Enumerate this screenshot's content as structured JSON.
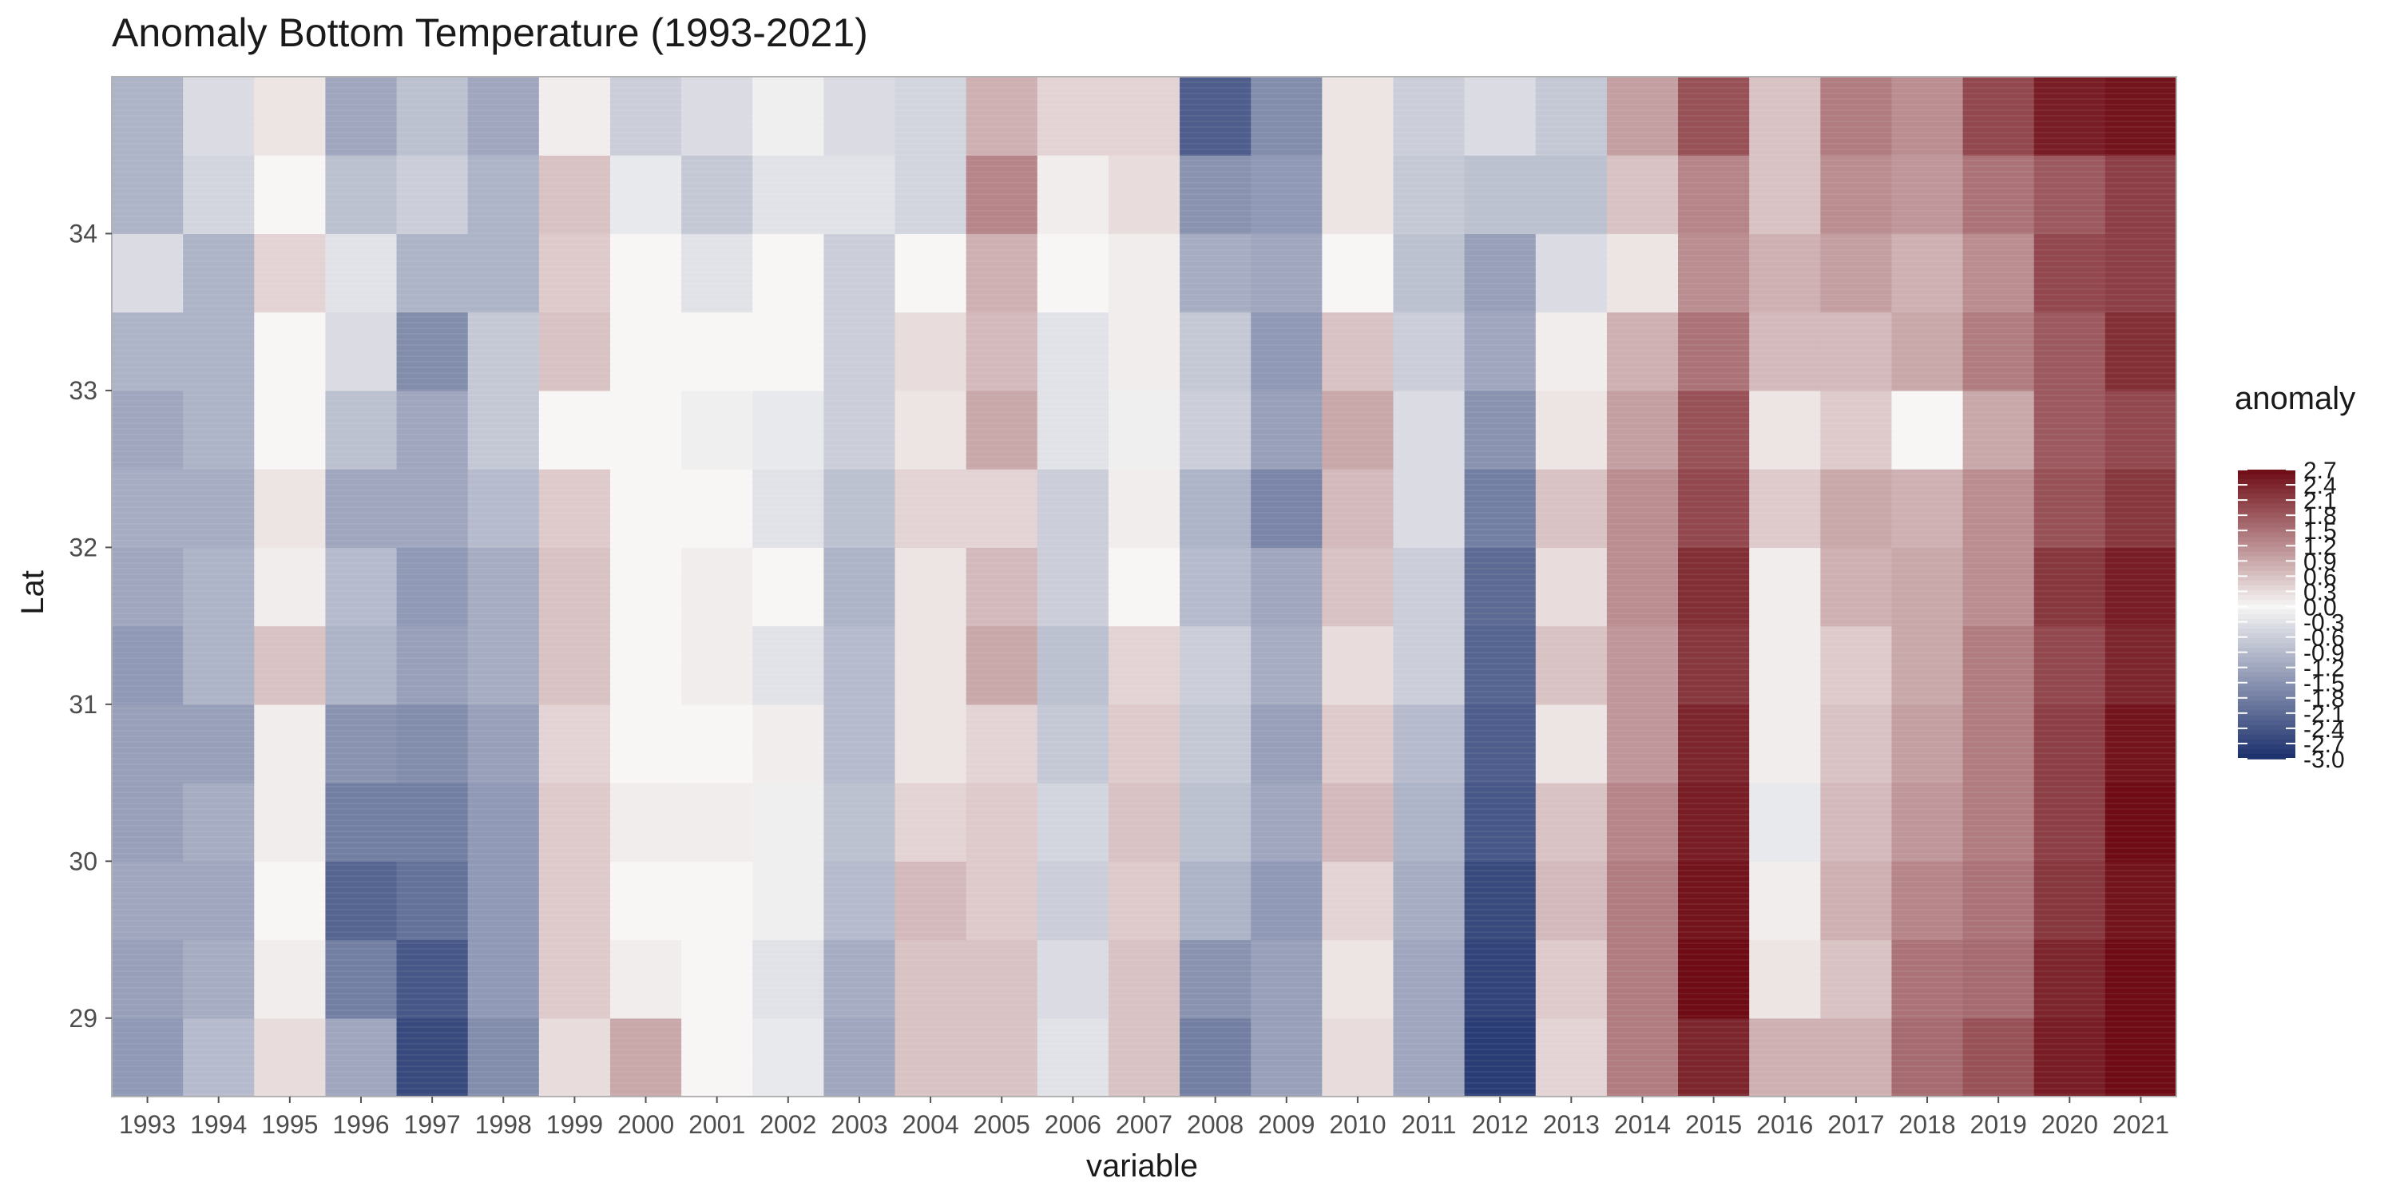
{
  "chart_data": {
    "type": "heatmap",
    "title": "Anomaly Bottom Temperature (1993-2021)",
    "xlabel": "variable",
    "ylabel": "Lat",
    "x_categories": [
      "1993",
      "1994",
      "1995",
      "1996",
      "1997",
      "1998",
      "1999",
      "2000",
      "2001",
      "2002",
      "2003",
      "2004",
      "2005",
      "2006",
      "2007",
      "2008",
      "2009",
      "2010",
      "2011",
      "2012",
      "2013",
      "2014",
      "2015",
      "2016",
      "2017",
      "2018",
      "2019",
      "2020",
      "2021"
    ],
    "y_range": [
      28.5,
      35.0
    ],
    "y_ticks": [
      29,
      30,
      31,
      32,
      33,
      34
    ],
    "y_tick_labels": [
      "29",
      "30",
      "31",
      "32",
      "33",
      "34"
    ],
    "lat_bands": [
      {
        "lat_from": 28.5,
        "lat_to": 29.0
      },
      {
        "lat_from": 29.0,
        "lat_to": 29.5
      },
      {
        "lat_from": 29.5,
        "lat_to": 30.0
      },
      {
        "lat_from": 30.0,
        "lat_to": 30.5
      },
      {
        "lat_from": 30.5,
        "lat_to": 31.0
      },
      {
        "lat_from": 31.0,
        "lat_to": 31.5
      },
      {
        "lat_from": 31.5,
        "lat_to": 32.0
      },
      {
        "lat_from": 32.0,
        "lat_to": 32.5
      },
      {
        "lat_from": 32.5,
        "lat_to": 33.0
      },
      {
        "lat_from": 33.0,
        "lat_to": 33.5
      },
      {
        "lat_from": 33.5,
        "lat_to": 34.0
      },
      {
        "lat_from": 34.0,
        "lat_to": 34.5
      },
      {
        "lat_from": 34.5,
        "lat_to": 35.0
      }
    ],
    "values": [
      [
        -1.4,
        -0.9,
        0.3,
        -1.2,
        -2.6,
        -1.6,
        0.3,
        0.9,
        0.0,
        -0.2,
        -1.2,
        0.6,
        0.6,
        -0.3,
        0.6,
        -1.8,
        -1.3,
        0.3,
        -1.2,
        -2.8,
        0.4,
        1.4,
        2.4,
        0.8,
        0.8,
        1.6,
        1.9,
        2.5,
        2.7
      ],
      [
        -1.3,
        -1.1,
        0.1,
        -1.8,
        -2.4,
        -1.4,
        0.5,
        0.1,
        0.0,
        -0.3,
        -1.1,
        0.6,
        0.6,
        -0.4,
        0.6,
        -1.5,
        -1.3,
        0.2,
        -1.2,
        -2.7,
        0.5,
        1.4,
        2.7,
        0.2,
        0.6,
        1.5,
        1.6,
        2.4,
        2.7
      ],
      [
        -1.2,
        -1.2,
        0.0,
        -2.2,
        -2.0,
        -1.4,
        0.5,
        0.0,
        0.0,
        -0.1,
        -0.9,
        0.7,
        0.5,
        -0.6,
        0.5,
        -1.0,
        -1.4,
        0.4,
        -1.1,
        -2.6,
        0.7,
        1.4,
        2.6,
        0.1,
        0.8,
        1.3,
        1.5,
        2.2,
        2.6
      ],
      [
        -1.3,
        -1.1,
        0.1,
        -1.8,
        -1.8,
        -1.4,
        0.5,
        0.1,
        0.1,
        -0.1,
        -0.8,
        0.4,
        0.5,
        -0.5,
        0.6,
        -0.8,
        -1.2,
        0.7,
        -1.0,
        -2.4,
        0.6,
        1.3,
        2.5,
        -0.2,
        0.7,
        1.1,
        1.4,
        2.1,
        2.7
      ],
      [
        -1.3,
        -1.3,
        0.1,
        -1.5,
        -1.6,
        -1.3,
        0.4,
        0.0,
        0.0,
        0.1,
        -0.9,
        0.2,
        0.4,
        -0.7,
        0.5,
        -0.7,
        -1.3,
        0.5,
        -0.9,
        -2.3,
        0.2,
        1.1,
        2.4,
        0.1,
        0.6,
        1.0,
        1.4,
        2.1,
        2.6
      ],
      [
        -1.4,
        -1.0,
        0.6,
        -1.0,
        -1.3,
        -1.1,
        0.6,
        0.0,
        0.1,
        -0.3,
        -0.9,
        0.2,
        0.9,
        -0.8,
        0.4,
        -0.6,
        -1.1,
        0.3,
        -0.6,
        -2.2,
        0.6,
        1.1,
        2.2,
        0.1,
        0.5,
        0.9,
        1.4,
        2.0,
        2.4
      ],
      [
        -1.2,
        -1.0,
        0.1,
        -0.9,
        -1.4,
        -1.1,
        0.6,
        0.0,
        0.1,
        0.0,
        -1.0,
        0.2,
        0.7,
        -0.6,
        0.0,
        -0.9,
        -1.2,
        0.6,
        -0.6,
        -2.1,
        0.3,
        1.2,
        2.3,
        0.1,
        0.8,
        0.9,
        1.2,
        2.2,
        2.5
      ],
      [
        -1.1,
        -1.1,
        0.2,
        -1.2,
        -1.2,
        -0.9,
        0.5,
        0.0,
        0.0,
        -0.3,
        -0.8,
        0.4,
        0.4,
        -0.6,
        0.1,
        -1.0,
        -1.7,
        0.7,
        -0.4,
        -1.8,
        0.6,
        1.2,
        2.0,
        0.5,
        0.9,
        0.8,
        1.2,
        1.9,
        2.2
      ],
      [
        -1.2,
        -1.0,
        0.0,
        -0.8,
        -1.2,
        -0.7,
        0.0,
        0.0,
        -0.1,
        -0.2,
        -0.6,
        0.2,
        0.9,
        -0.3,
        -0.1,
        -0.6,
        -1.3,
        0.9,
        -0.4,
        -1.5,
        0.2,
        1.0,
        1.9,
        0.2,
        0.5,
        0.0,
        0.9,
        1.8,
        2.0
      ],
      [
        -1.0,
        -1.0,
        0.0,
        -0.4,
        -1.6,
        -0.7,
        0.6,
        0.0,
        0.0,
        0.0,
        -0.6,
        0.3,
        0.7,
        -0.3,
        0.1,
        -0.7,
        -1.4,
        0.6,
        -0.6,
        -1.2,
        0.1,
        0.8,
        1.5,
        0.7,
        0.7,
        0.9,
        1.4,
        1.8,
        2.3
      ],
      [
        -0.4,
        -1.0,
        0.4,
        -0.3,
        -1.0,
        -1.0,
        0.5,
        0.0,
        -0.3,
        0.0,
        -0.6,
        0.0,
        0.8,
        0.0,
        0.1,
        -1.1,
        -1.2,
        0.0,
        -0.8,
        -1.3,
        -0.4,
        0.2,
        1.2,
        0.8,
        1.0,
        0.8,
        1.2,
        2.0,
        2.1
      ],
      [
        -1.0,
        -0.5,
        0.0,
        -0.8,
        -0.6,
        -1.0,
        0.6,
        -0.2,
        -0.7,
        -0.3,
        -0.3,
        -0.5,
        1.3,
        0.1,
        0.3,
        -1.5,
        -1.4,
        0.2,
        -0.7,
        -0.8,
        -0.8,
        0.6,
        1.3,
        0.6,
        1.2,
        1.1,
        1.5,
        1.8,
        2.1
      ],
      [
        -1.0,
        -0.4,
        0.2,
        -1.2,
        -0.8,
        -1.2,
        0.1,
        -0.6,
        -0.4,
        -0.1,
        -0.4,
        -0.5,
        0.8,
        0.4,
        0.4,
        -2.3,
        -1.6,
        0.2,
        -0.6,
        -0.4,
        -0.7,
        1.0,
        1.9,
        0.6,
        1.4,
        1.2,
        2.0,
        2.5,
        2.6
      ]
    ],
    "legend_title": "anomaly",
    "legend_labels": [
      "2.7",
      "2.4",
      "2.1",
      "1.8",
      "1.5",
      "1.2",
      "0.9",
      "0.6",
      "0.3",
      "0.0",
      "-0.3",
      "-0.6",
      "-0.9",
      "-1.2",
      "-1.5",
      "-1.8",
      "-2.1",
      "-2.4",
      "-2.7",
      "-3.0"
    ],
    "legend_position": "right",
    "color_scale": {
      "min": -3.0,
      "max": 2.7,
      "low": "#1b2f6b",
      "mid": "#f7f6f5",
      "high": "#6e0b14"
    },
    "grid": false
  }
}
